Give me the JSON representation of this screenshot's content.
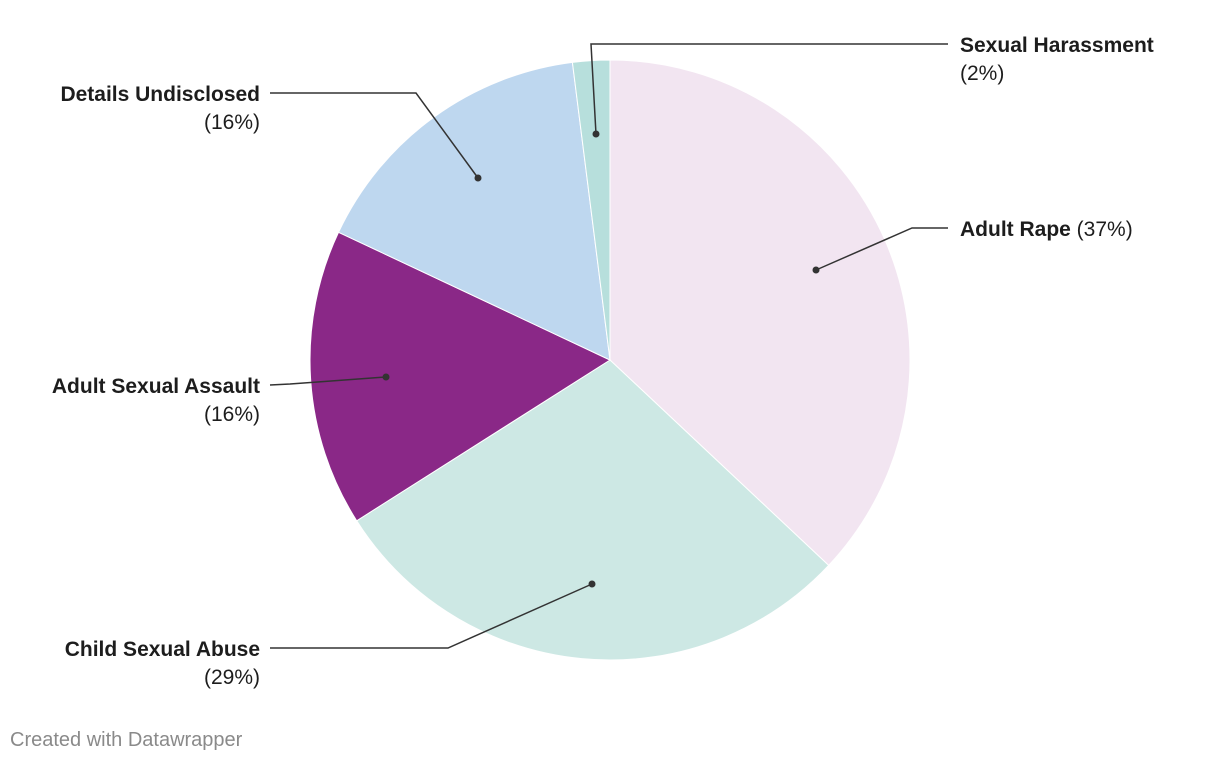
{
  "chart_data": {
    "type": "pie",
    "slices": [
      {
        "label": "Adult Rape",
        "value": 37,
        "value_label": "(37%)",
        "color": "#f2e5f1"
      },
      {
        "label": "Child Sexual Abuse",
        "value": 29,
        "value_label": "(29%)",
        "color": "#cde8e4"
      },
      {
        "label": "Adult Sexual Assault",
        "value": 16,
        "value_label": "(16%)",
        "color": "#8a2887"
      },
      {
        "label": "Details Undisclosed",
        "value": 16,
        "value_label": "(16%)",
        "color": "#bed7ef"
      },
      {
        "label": "Sexual Harassment",
        "value": 2,
        "value_label": "(2%)",
        "color": "#b7dfdc"
      }
    ],
    "leader_color": "#333333"
  },
  "footer": {
    "credit": "Created with Datawrapper"
  }
}
